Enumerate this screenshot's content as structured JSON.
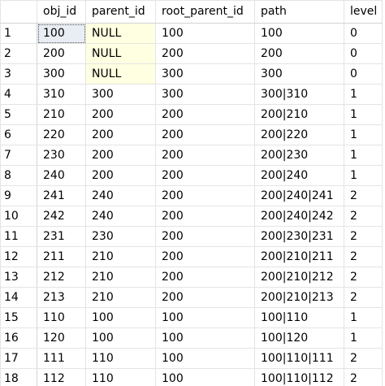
{
  "grid": {
    "columns": [
      "",
      "obj_id",
      "parent_id",
      "root_parent_id",
      "path",
      "level"
    ],
    "rows": [
      {
        "n": "1",
        "obj_id": "100",
        "parent_id": "NULL",
        "root_parent_id": "100",
        "path": "100",
        "level": "0"
      },
      {
        "n": "2",
        "obj_id": "200",
        "parent_id": "NULL",
        "root_parent_id": "200",
        "path": "200",
        "level": "0"
      },
      {
        "n": "3",
        "obj_id": "300",
        "parent_id": "NULL",
        "root_parent_id": "300",
        "path": "300",
        "level": "0"
      },
      {
        "n": "4",
        "obj_id": "310",
        "parent_id": "300",
        "root_parent_id": "300",
        "path": "300|310",
        "level": "1"
      },
      {
        "n": "5",
        "obj_id": "210",
        "parent_id": "200",
        "root_parent_id": "200",
        "path": "200|210",
        "level": "1"
      },
      {
        "n": "6",
        "obj_id": "220",
        "parent_id": "200",
        "root_parent_id": "200",
        "path": "200|220",
        "level": "1"
      },
      {
        "n": "7",
        "obj_id": "230",
        "parent_id": "200",
        "root_parent_id": "200",
        "path": "200|230",
        "level": "1"
      },
      {
        "n": "8",
        "obj_id": "240",
        "parent_id": "200",
        "root_parent_id": "200",
        "path": "200|240",
        "level": "1"
      },
      {
        "n": "9",
        "obj_id": "241",
        "parent_id": "240",
        "root_parent_id": "200",
        "path": "200|240|241",
        "level": "2"
      },
      {
        "n": "10",
        "obj_id": "242",
        "parent_id": "240",
        "root_parent_id": "200",
        "path": "200|240|242",
        "level": "2"
      },
      {
        "n": "11",
        "obj_id": "231",
        "parent_id": "230",
        "root_parent_id": "200",
        "path": "200|230|231",
        "level": "2"
      },
      {
        "n": "12",
        "obj_id": "211",
        "parent_id": "210",
        "root_parent_id": "200",
        "path": "200|210|211",
        "level": "2"
      },
      {
        "n": "13",
        "obj_id": "212",
        "parent_id": "210",
        "root_parent_id": "200",
        "path": "200|210|212",
        "level": "2"
      },
      {
        "n": "14",
        "obj_id": "213",
        "parent_id": "210",
        "root_parent_id": "200",
        "path": "200|210|213",
        "level": "2"
      },
      {
        "n": "15",
        "obj_id": "110",
        "parent_id": "100",
        "root_parent_id": "100",
        "path": "100|110",
        "level": "1"
      },
      {
        "n": "16",
        "obj_id": "120",
        "parent_id": "100",
        "root_parent_id": "100",
        "path": "100|120",
        "level": "1"
      },
      {
        "n": "17",
        "obj_id": "111",
        "parent_id": "110",
        "root_parent_id": "100",
        "path": "100|110|111",
        "level": "2"
      },
      {
        "n": "18",
        "obj_id": "112",
        "parent_id": "110",
        "root_parent_id": "100",
        "path": "100|110|112",
        "level": "2"
      }
    ],
    "selected": {
      "row": 0,
      "column": "obj_id"
    },
    "null_highlight_color": "#ffffe1",
    "selected_cell_color": "#e9eef4"
  }
}
